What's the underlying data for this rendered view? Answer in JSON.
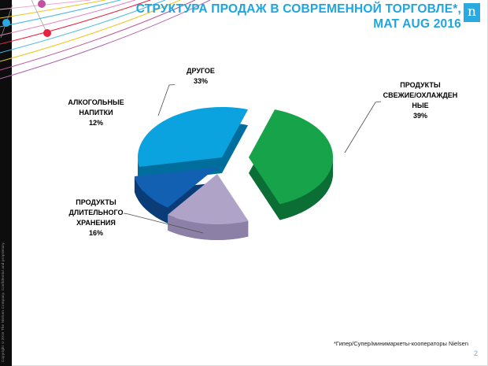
{
  "header": {
    "title_line1": "СТРУКТУРА ПРОДАЖ В СОВРЕМЕННОЙ ТОРГОВЛЕ*,",
    "title_line2": "MAT AUG 2016",
    "logo_letter": "n",
    "accent_color": "#29ABE2"
  },
  "footer": {
    "footnote": "*Гипер/Супер/минимаркеты-кооператоры  Nielsen",
    "page_number": "2",
    "copyright_vertical": "Copyright ©2016 The Nielsen Company. Confidential and proprietary."
  },
  "chart_data": {
    "type": "pie",
    "title": "СТРУКТУРА ПРОДАЖ В СОВРЕМЕННОЙ ТОРГОВЛЕ*, MAT AUG 2016",
    "unit": "%",
    "style": "3d-exploded",
    "start_angle_deg": 18,
    "direction": "clockwise",
    "legend_position": "callouts",
    "slices": [
      {
        "label": "ПРОДУКТЫ СВЕЖИЕ/ОХЛАЖДЕННЫЕ",
        "value": 39,
        "color": "#17A349",
        "side_color": "#0A6E35"
      },
      {
        "label": "ПРОДУКТЫ ДЛИТЕЛЬНОГО ХРАНЕНИЯ",
        "value": 16,
        "color": "#AFA4C7",
        "side_color": "#8C80A6"
      },
      {
        "label": "АЛКОГОЛЬНЫЕ НАПИТКИ",
        "value": 12,
        "color": "#1160B2",
        "side_color": "#0A3C77"
      },
      {
        "label": "ДРУГОЕ",
        "value": 33,
        "color": "#0AA2DF",
        "side_color": "#006E9D"
      }
    ],
    "callouts": [
      {
        "for": "ДРУГОЕ",
        "lines": [
          "ДРУГОЕ",
          "33%"
        ]
      },
      {
        "for": "АЛКОГОЛЬНЫЕ НАПИТКИ",
        "lines": [
          "АЛКОГОЛЬНЫЕ",
          "НАПИТКИ",
          "12%"
        ]
      },
      {
        "for": "ПРОДУКТЫ СВЕЖИЕ/ОХЛАЖДЕННЫЕ",
        "lines": [
          "ПРОДУКТЫ",
          "СВЕЖИЕ/ОХЛАЖДЕН",
          "НЫЕ",
          "39%"
        ]
      },
      {
        "for": "ПРОДУКТЫ ДЛИТЕЛЬНОГО ХРАНЕНИЯ",
        "lines": [
          "ПРОДУКТЫ",
          "ДЛИТЕЛЬНОГО",
          "ХРАНЕНИЯ",
          "16%"
        ]
      }
    ]
  }
}
